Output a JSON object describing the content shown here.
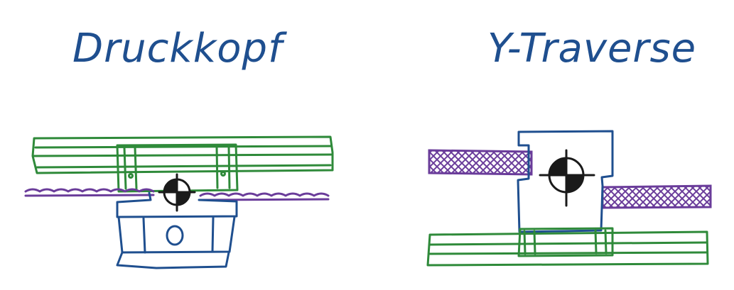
{
  "labels": {
    "printhead": "Druckkopf",
    "y_traverse": "Y-Traverse"
  },
  "colors": {
    "ink_blue": "#1f4f8f",
    "rail_green": "#2f8a3a",
    "belt_purple": "#6a3c9a",
    "marker_black": "#1a1a1a",
    "background": "#ffffff"
  },
  "icons": {
    "center_marker": "crosshair-centroid-icon"
  }
}
